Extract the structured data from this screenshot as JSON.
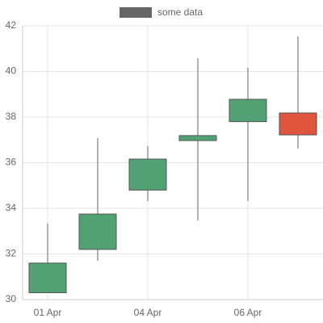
{
  "chart_data": {
    "type": "candlestick",
    "categories": [
      "01 Apr",
      null,
      "04 Apr",
      null,
      "06 Apr",
      null
    ],
    "series": [
      {
        "name": "some data",
        "color": "#666666",
        "open": [
          30.3,
          32.2,
          34.8,
          36.97,
          37.8,
          38.18
        ],
        "high": [
          33.33,
          37.08,
          36.73,
          40.58,
          40.16,
          41.54
        ],
        "low": [
          30.3,
          31.7,
          34.32,
          33.47,
          34.32,
          36.62
        ],
        "close": [
          31.6,
          33.75,
          36.16,
          37.19,
          38.78,
          37.22
        ]
      }
    ],
    "up_color": "#52a174",
    "down_color": "#e0553e",
    "ylim": [
      30,
      42
    ],
    "yticks": [
      30,
      32,
      34,
      36,
      38,
      40,
      42
    ],
    "grid": true,
    "legend": "top"
  }
}
